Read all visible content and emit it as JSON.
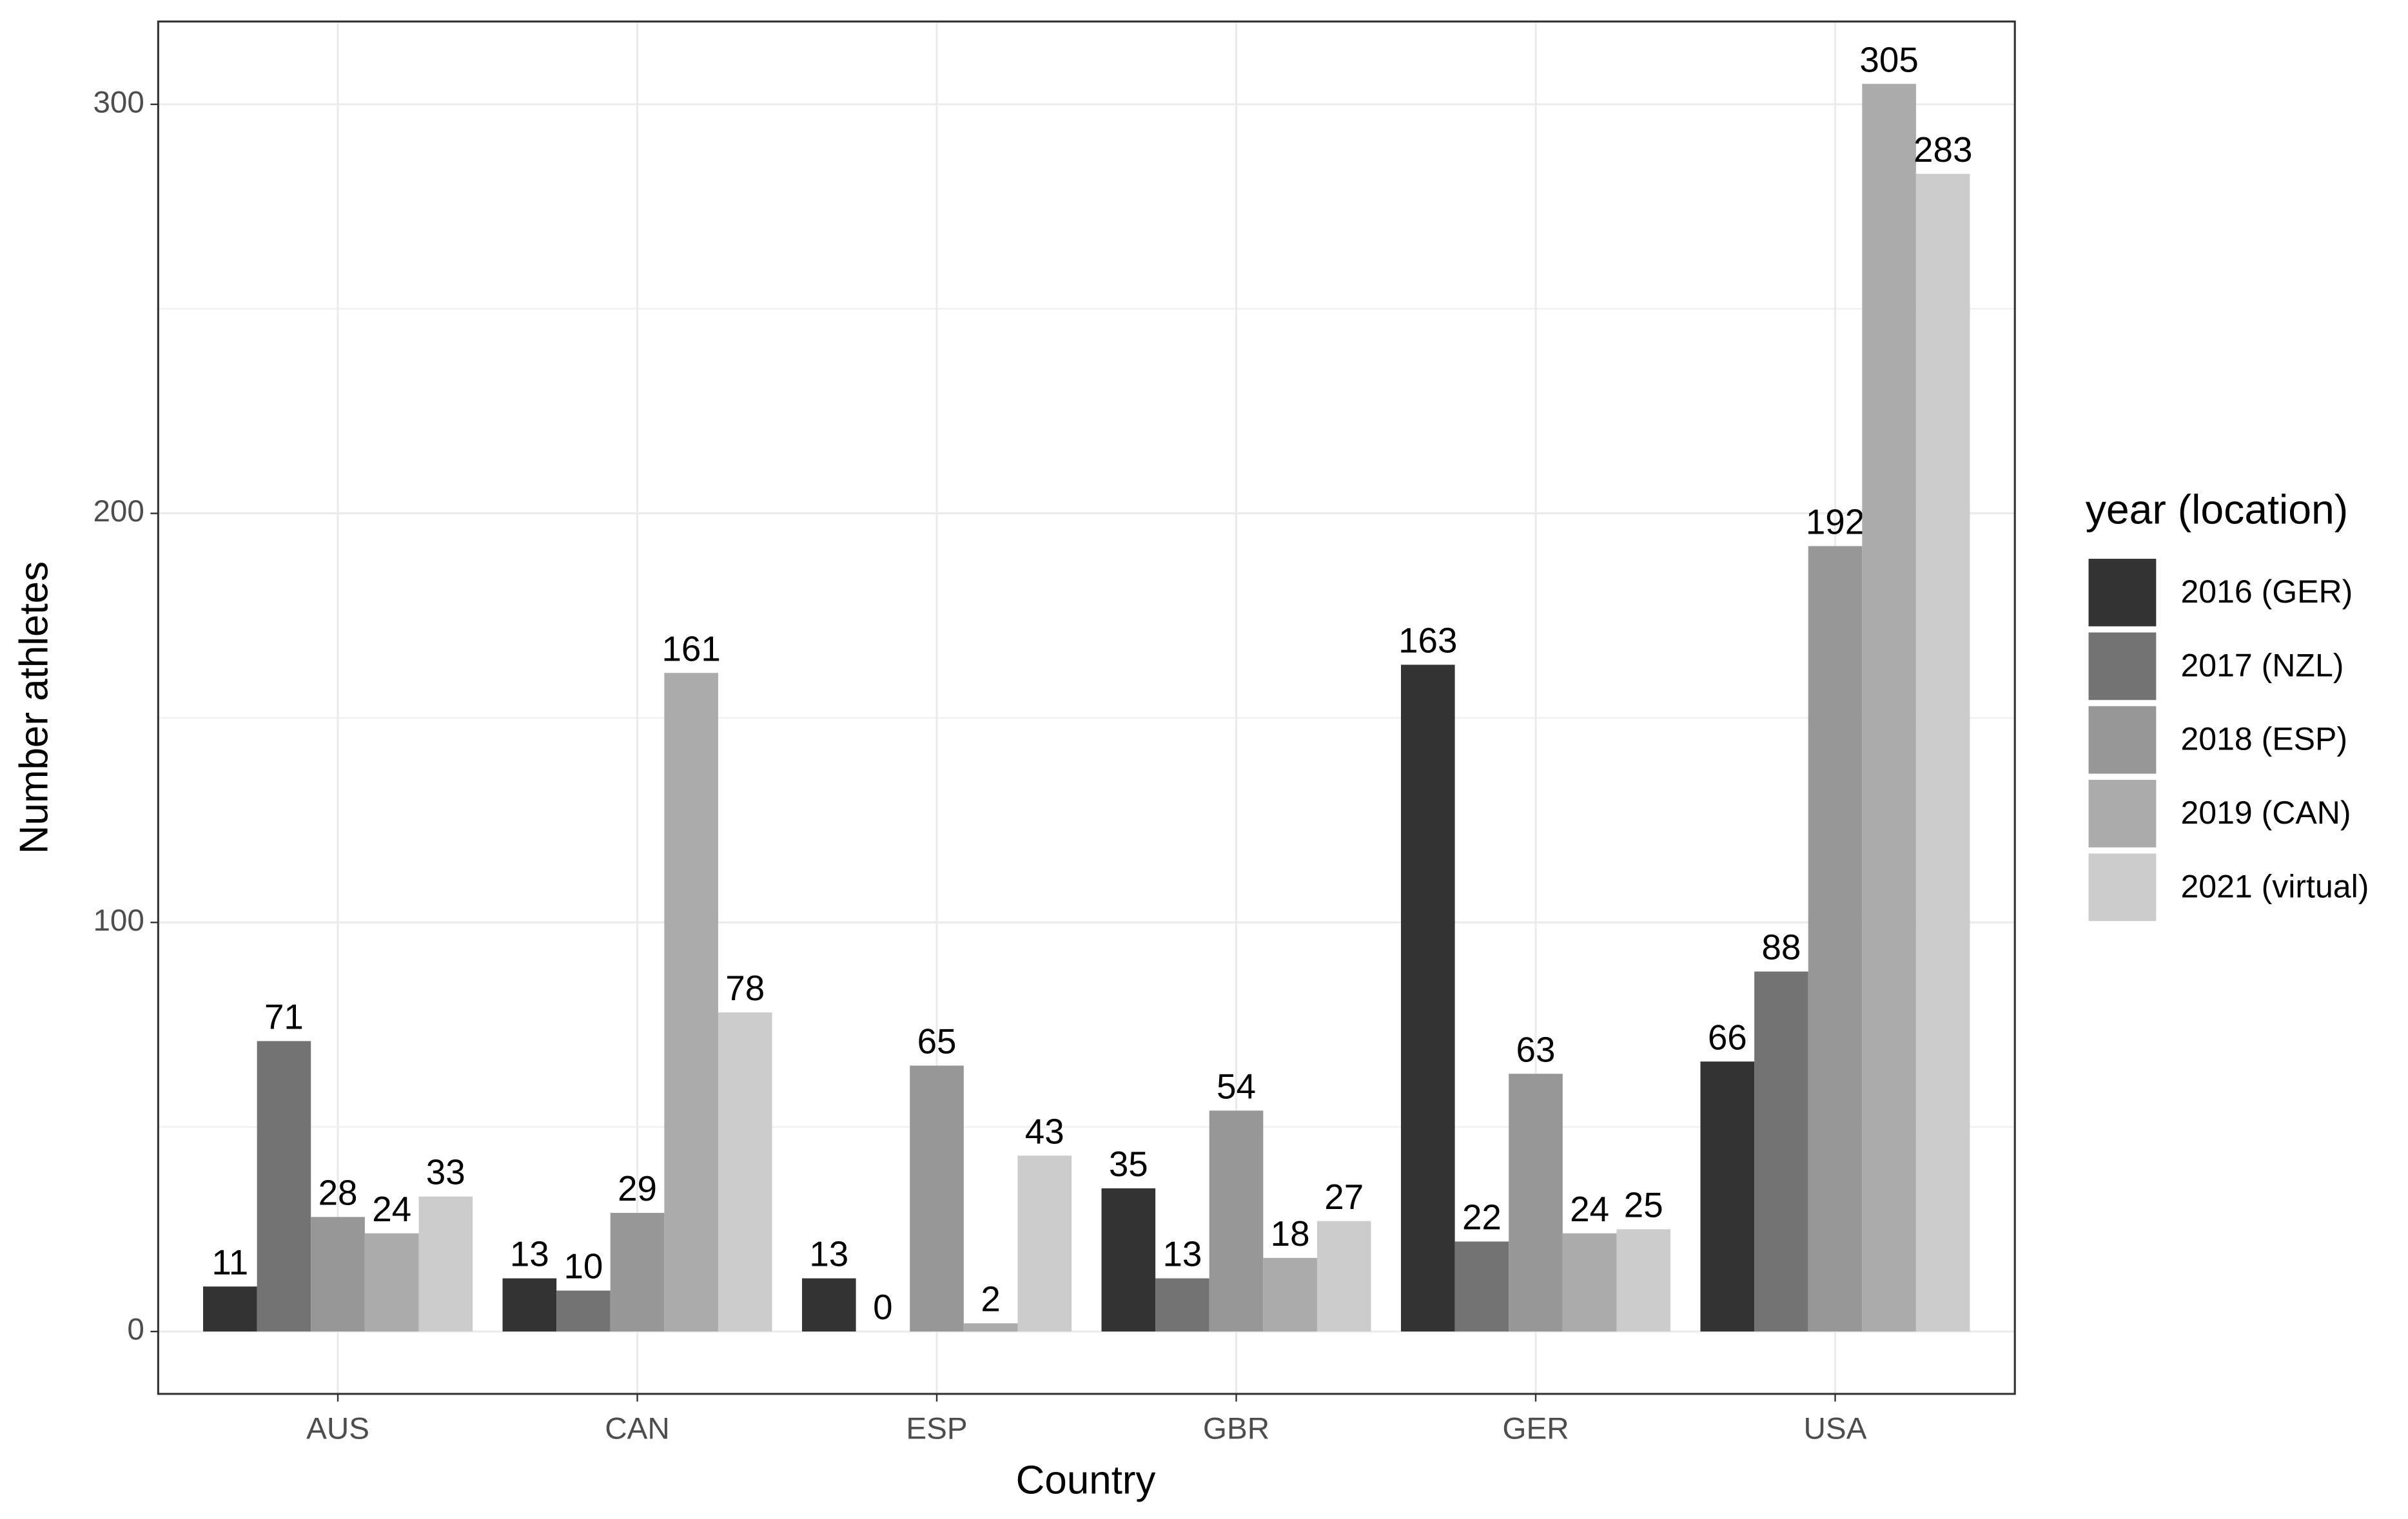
{
  "chart_data": {
    "type": "bar",
    "x_label": "Country",
    "y_label": "Number athletes",
    "categories": [
      "AUS",
      "CAN",
      "ESP",
      "GBR",
      "GER",
      "USA"
    ],
    "series": [
      {
        "name": "2016 (GER)",
        "color": "#333333",
        "values": [
          11,
          13,
          13,
          35,
          163,
          66
        ]
      },
      {
        "name": "2017 (NZL)",
        "color": "#737373",
        "values": [
          71,
          10,
          0,
          13,
          22,
          88
        ]
      },
      {
        "name": "2018 (ESP)",
        "color": "#979797",
        "values": [
          28,
          29,
          65,
          54,
          63,
          192
        ]
      },
      {
        "name": "2019 (CAN)",
        "color": "#ababab",
        "values": [
          24,
          161,
          2,
          18,
          24,
          305
        ]
      },
      {
        "name": "2021 (virtual)",
        "color": "#cccccc",
        "values": [
          33,
          78,
          43,
          27,
          25,
          283
        ]
      }
    ],
    "legend_title": "year (location)",
    "legend": "right",
    "ylim": [
      -15.25,
      320.25
    ],
    "yticks": [
      0,
      100,
      200,
      300
    ],
    "grid": true,
    "value_labels_shown": true
  }
}
